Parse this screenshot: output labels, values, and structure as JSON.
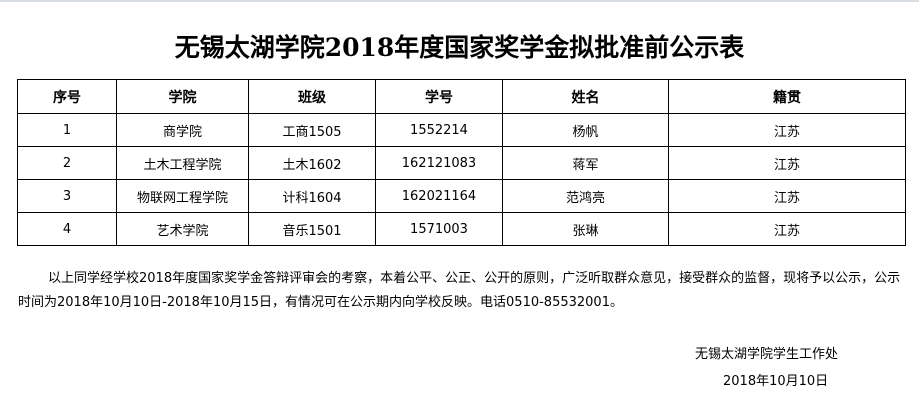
{
  "title": "无锡太湖学院2018年度国家奖学金拟批准前公示表",
  "table": {
    "headers": [
      "序号",
      "学院",
      "班级",
      "学号",
      "姓名",
      "籍贯"
    ],
    "rows": [
      [
        "1",
        "商学院",
        "工商1505",
        "1552214",
        "杨帆",
        "江苏"
      ],
      [
        "2",
        "土木工程学院",
        "土木1602",
        "162121083",
        "蒋军",
        "江苏"
      ],
      [
        "3",
        "物联网工程学院",
        "计科1604",
        "162021164",
        "范鸿亮",
        "江苏"
      ],
      [
        "4",
        "艺术学院",
        "音乐1501",
        "1571003",
        "张琳",
        "江苏"
      ]
    ]
  },
  "notice": "以上同学经学校2018年度国家奖学金答辩评审会的考察，本着公平、公正、公开的原则，广泛听取群众意见，接受群众的监督，现将予以公示，公示时间为2018年10月10日-2018年10月15日，有情况可在公示期内向学校反映。电话0510-85532001。",
  "signature": "无锡太湖学院学生工作处",
  "date": "2018年10月10日"
}
